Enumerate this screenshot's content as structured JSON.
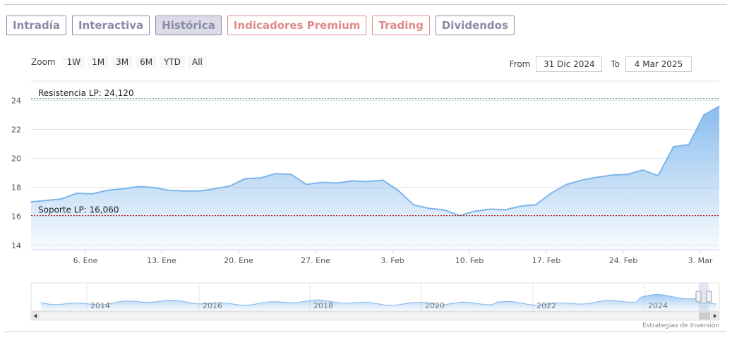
{
  "tabs": [
    {
      "label": "Intradía",
      "active": false,
      "premium": false
    },
    {
      "label": "Interactiva",
      "active": false,
      "premium": false
    },
    {
      "label": "Histórica",
      "active": true,
      "premium": false
    },
    {
      "label": "Indicadores Premium",
      "active": false,
      "premium": true
    },
    {
      "label": "Trading",
      "active": false,
      "premium": true
    },
    {
      "label": "Dividendos",
      "active": false,
      "premium": false
    }
  ],
  "zoom": {
    "label": "Zoom",
    "buttons": [
      "1W",
      "1M",
      "3M",
      "6M",
      "YTD",
      "All"
    ]
  },
  "range": {
    "from_label": "From",
    "from_value": "31 Dic 2024",
    "to_label": "To",
    "to_value": "4 Mar 2025"
  },
  "credits": "Estrategias de Inversión",
  "colors": {
    "line": "#7cb5ec",
    "resistance": "#2e7d32",
    "support": "#b71c1c",
    "tab": "#8a8aa8",
    "tab_premium": "#e08a8a"
  },
  "chart_data": {
    "type": "area",
    "y_ticks": [
      14,
      16,
      18,
      20,
      22,
      24
    ],
    "ylim": [
      13.7,
      24.7
    ],
    "x_tick_labels": [
      "6. Ene",
      "13. Ene",
      "20. Ene",
      "27. Ene",
      "3. Feb",
      "10. Feb",
      "17. Feb",
      "24. Feb",
      "3. Mar"
    ],
    "series": [
      {
        "values": [
          17.0,
          17.1,
          17.2,
          17.6,
          17.55,
          17.8,
          17.9,
          18.05,
          18.0,
          17.8,
          17.75,
          17.75,
          17.9,
          18.1,
          18.6,
          18.65,
          18.95,
          18.9,
          18.2,
          18.35,
          18.3,
          18.45,
          18.4,
          18.5,
          17.8,
          16.8,
          16.55,
          16.45,
          16.05,
          16.35,
          16.5,
          16.45,
          16.7,
          16.8,
          17.6,
          18.2,
          18.5,
          18.7,
          18.85,
          18.9,
          19.2,
          18.8,
          20.8,
          20.95,
          23.0,
          23.6
        ]
      }
    ],
    "annotations": [
      {
        "label": "Resistencia LP: 24,120",
        "value": 24.12,
        "color": "#2e7d32"
      },
      {
        "label": "Soporte LP: 16,060",
        "value": 16.06,
        "color": "#b71c1c"
      }
    ],
    "navigator": {
      "x_tick_labels": [
        "2014",
        "2016",
        "2018",
        "2020",
        "2022",
        "2024"
      ]
    }
  }
}
